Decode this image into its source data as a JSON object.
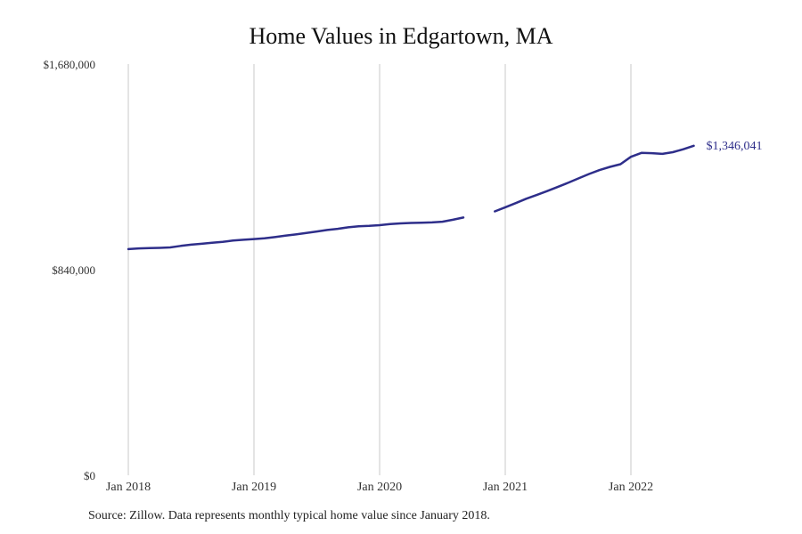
{
  "chart_data": {
    "type": "line",
    "title": "Home Values in Edgartown, MA",
    "xlabel": "",
    "ylabel": "",
    "ylim": [
      0,
      1680000
    ],
    "y_ticks": [
      {
        "value": 0,
        "label": "$0"
      },
      {
        "value": 840000,
        "label": "$840,000"
      },
      {
        "value": 1680000,
        "label": "$1,680,000"
      }
    ],
    "x_ticks": [
      {
        "value": 0,
        "label": "Jan 2018"
      },
      {
        "value": 12,
        "label": "Jan 2019"
      },
      {
        "value": 24,
        "label": "Jan 2020"
      },
      {
        "value": 36,
        "label": "Jan 2021"
      },
      {
        "value": 48,
        "label": "Jan 2022"
      }
    ],
    "xlim": [
      0,
      60
    ],
    "grid": "vertical",
    "series": [
      {
        "name": "",
        "color": "#2e2e8a",
        "segments": [
          [
            [
              0,
              924000
            ],
            [
              1,
              927000
            ],
            [
              2,
              928000
            ],
            [
              3,
              929000
            ],
            [
              4,
              931000
            ],
            [
              5,
              937000
            ],
            [
              6,
              942000
            ],
            [
              7,
              946000
            ],
            [
              8,
              950000
            ],
            [
              9,
              954000
            ],
            [
              10,
              959000
            ],
            [
              11,
              962000
            ],
            [
              12,
              965000
            ],
            [
              13,
              968000
            ],
            [
              14,
              973000
            ],
            [
              15,
              979000
            ],
            [
              16,
              984000
            ],
            [
              17,
              990000
            ],
            [
              18,
              996000
            ],
            [
              19,
              1002000
            ],
            [
              20,
              1007000
            ],
            [
              21,
              1013000
            ],
            [
              22,
              1017000
            ],
            [
              23,
              1019000
            ],
            [
              24,
              1022000
            ],
            [
              25,
              1026000
            ],
            [
              26,
              1029000
            ],
            [
              27,
              1031000
            ],
            [
              28,
              1032000
            ],
            [
              29,
              1033000
            ],
            [
              30,
              1036000
            ],
            [
              31,
              1044000
            ],
            [
              32,
              1053000
            ]
          ],
          [
            [
              35,
              1078000
            ],
            [
              36,
              1095000
            ],
            [
              37,
              1112000
            ],
            [
              38,
              1130000
            ],
            [
              39,
              1145000
            ],
            [
              40,
              1161000
            ],
            [
              41,
              1178000
            ],
            [
              42,
              1195000
            ],
            [
              43,
              1213000
            ],
            [
              44,
              1231000
            ],
            [
              45,
              1247000
            ],
            [
              46,
              1260000
            ],
            [
              47,
              1271000
            ],
            [
              48,
              1301000
            ],
            [
              49,
              1317000
            ],
            [
              50,
              1316000
            ],
            [
              51,
              1313000
            ],
            [
              52,
              1320000
            ],
            [
              53,
              1332000
            ],
            [
              54,
              1346041
            ]
          ]
        ]
      }
    ],
    "end_label": "$1,346,041"
  },
  "footer": {
    "source": "Source: Zillow. Data represents monthly typical home value since January 2018."
  }
}
